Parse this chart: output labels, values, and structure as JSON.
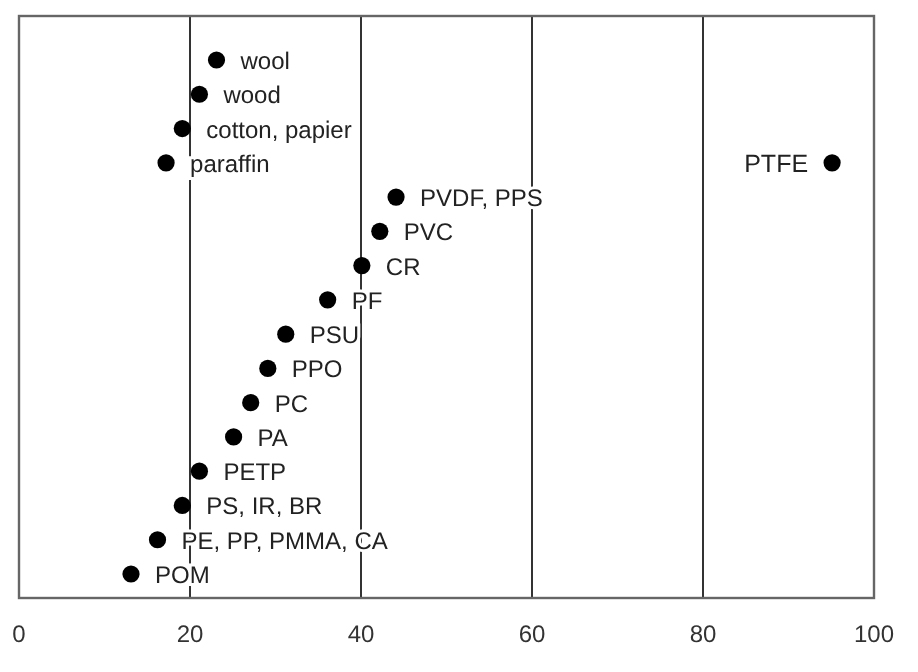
{
  "chart_data": {
    "type": "scatter",
    "orientation": "horizontal",
    "categories": [
      "wool",
      "wood",
      "cotton, papier",
      "paraffin",
      "PVDF, PPS",
      "PVC",
      "CR",
      "PF",
      "PSU",
      "PPO",
      "PC",
      "PA",
      "PETP",
      "PS, IR, BR",
      "PE, PP, PMMA, CA",
      "POM"
    ],
    "series": [
      {
        "color": "#000000",
        "values": [
          23.1,
          21.1,
          19.1,
          17.2,
          44.1,
          42.2,
          40.1,
          36.1,
          31.2,
          29.1,
          27.1,
          25.1,
          21.1,
          19.1,
          16.2,
          13.1
        ]
      },
      {
        "color": "#000000",
        "values": [
          null,
          null,
          null,
          95.1,
          null,
          null,
          null,
          null,
          null,
          null,
          null,
          null,
          null,
          null,
          null,
          null
        ]
      }
    ],
    "annotations": [
      {
        "text": "PTFE",
        "x": 95.1,
        "y": "paraffin"
      }
    ],
    "xlim": [
      0,
      100
    ],
    "xticks": [
      0,
      20,
      40,
      60,
      80,
      100
    ],
    "grid": "x",
    "marker": "circle"
  }
}
